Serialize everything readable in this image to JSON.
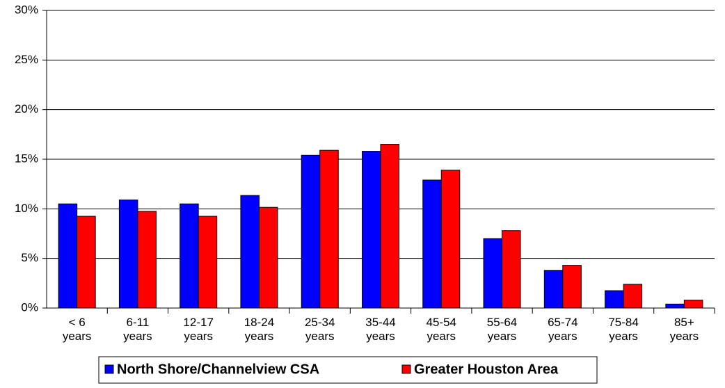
{
  "chart_data": {
    "type": "bar",
    "categories": [
      "< 6\nyears",
      "6-11\nyears",
      "12-17\nyears",
      "18-24\nyears",
      "25-34\nyears",
      "35-44\nyears",
      "45-54\nyears",
      "55-64\nyears",
      "65-74\nyears",
      "75-84\nyears",
      "85+\nyears"
    ],
    "series": [
      {
        "name": "North Shore/Channelview CSA",
        "color": "#0000ff",
        "values": [
          10.5,
          10.9,
          10.5,
          11.35,
          15.4,
          15.8,
          12.9,
          7.0,
          3.8,
          1.75,
          0.4
        ]
      },
      {
        "name": "Greater Houston Area",
        "color": "#ff0000",
        "values": [
          9.25,
          9.75,
          9.25,
          10.15,
          15.9,
          16.5,
          13.9,
          7.8,
          4.3,
          2.4,
          0.8
        ]
      }
    ],
    "ylim": [
      0,
      30
    ],
    "yticks": [
      {
        "value": 0,
        "label": "0%"
      },
      {
        "value": 5,
        "label": "5%"
      },
      {
        "value": 10,
        "label": "10%"
      },
      {
        "value": 15,
        "label": "15%"
      },
      {
        "value": 20,
        "label": "20%"
      },
      {
        "value": 25,
        "label": "25%"
      },
      {
        "value": 30,
        "label": "30%"
      }
    ],
    "grid": true,
    "legend": "bottom"
  }
}
